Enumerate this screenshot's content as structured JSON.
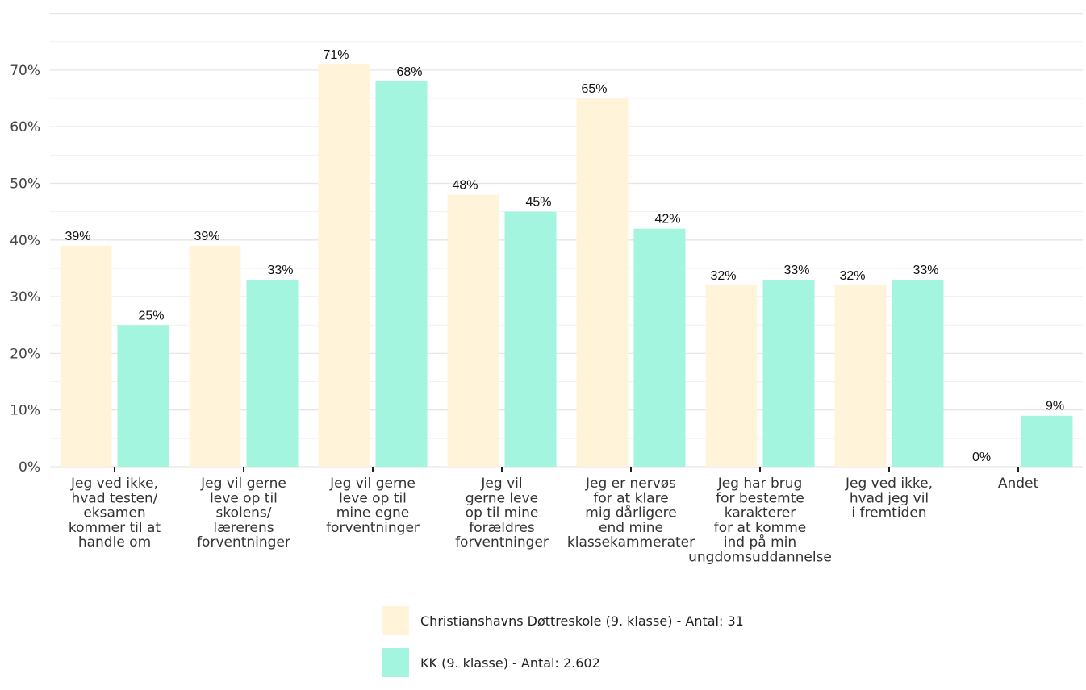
{
  "chart_data": {
    "type": "bar",
    "categories": [
      [
        "Jeg ved ikke,",
        "hvad testen/",
        "eksamen",
        "kommer til at",
        "handle om"
      ],
      [
        "Jeg vil gerne",
        "leve op til",
        "skolens/",
        "lærerens",
        "forventninger"
      ],
      [
        "Jeg vil gerne",
        "leve op til",
        "mine egne",
        "forventninger"
      ],
      [
        "Jeg vil",
        "gerne leve",
        "op til mine",
        "forældres",
        "forventninger"
      ],
      [
        "Jeg er nervøs",
        "for at klare",
        "mig dårligere",
        "end mine",
        "klassekammerater"
      ],
      [
        "Jeg har brug",
        "for bestemte",
        "karakterer",
        "for at komme",
        "ind på min",
        "ungdomsuddannelse"
      ],
      [
        "Jeg ved ikke,",
        "hvad jeg vil",
        "i fremtiden"
      ],
      [
        "Andet"
      ]
    ],
    "series": [
      {
        "name": "Christianshavns Døttreskole (9. klasse) - Antal: 31",
        "color": "#fff4d9",
        "values": [
          39,
          39,
          71,
          48,
          65,
          32,
          32,
          0
        ],
        "labels": [
          "39%",
          "39%",
          "71%",
          "48%",
          "65%",
          "32%",
          "32%",
          "0%"
        ]
      },
      {
        "name": "KK (9. klasse) - Antal: 2.602",
        "color": "#a3f5df",
        "values": [
          25,
          33,
          68,
          45,
          42,
          33,
          33,
          9
        ],
        "labels": [
          "25%",
          "33%",
          "68%",
          "45%",
          "42%",
          "33%",
          "33%",
          "9%"
        ]
      }
    ],
    "yticks": [
      0,
      10,
      20,
      30,
      40,
      50,
      60,
      70
    ],
    "ytick_labels": [
      "0%",
      "10%",
      "20%",
      "30%",
      "40%",
      "50%",
      "60%",
      "70%"
    ],
    "ylim": [
      0,
      80
    ],
    "grid": true,
    "legend_position": "bottom"
  }
}
